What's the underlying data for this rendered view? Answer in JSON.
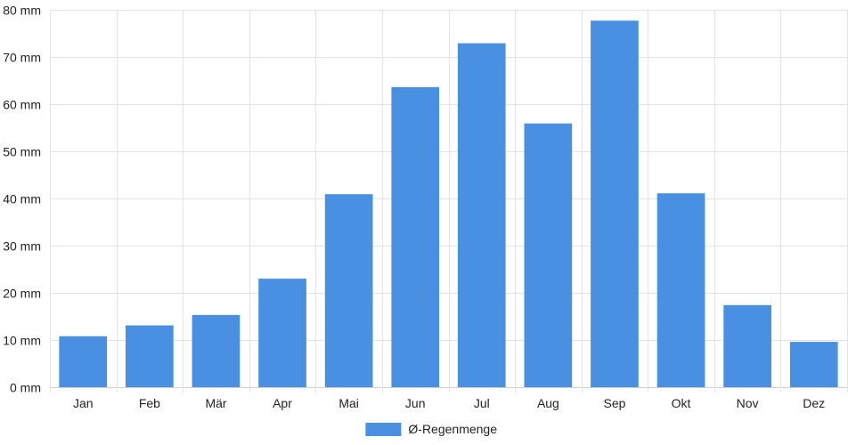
{
  "chart_data": {
    "type": "bar",
    "title": "",
    "xlabel": "",
    "ylabel": "",
    "unit": "mm",
    "categories": [
      "Jan",
      "Feb",
      "Mär",
      "Apr",
      "Mai",
      "Jun",
      "Jul",
      "Aug",
      "Sep",
      "Okt",
      "Nov",
      "Dez"
    ],
    "series": [
      {
        "name": "Ø-Regenmenge",
        "color": "#4a90e2",
        "values": [
          10.8,
          13.1,
          15.3,
          23.0,
          40.9,
          63.6,
          72.9,
          55.9,
          77.7,
          41.1,
          17.4,
          9.6
        ]
      }
    ],
    "ylim": [
      0,
      80
    ],
    "yticks": [
      0,
      10,
      20,
      30,
      40,
      50,
      60,
      70,
      80
    ],
    "ytick_labels": [
      "0 mm",
      "10 mm",
      "20 mm",
      "30 mm",
      "40 mm",
      "50 mm",
      "60 mm",
      "70 mm",
      "80 mm"
    ],
    "grid": true,
    "legend": "bottom-center"
  }
}
